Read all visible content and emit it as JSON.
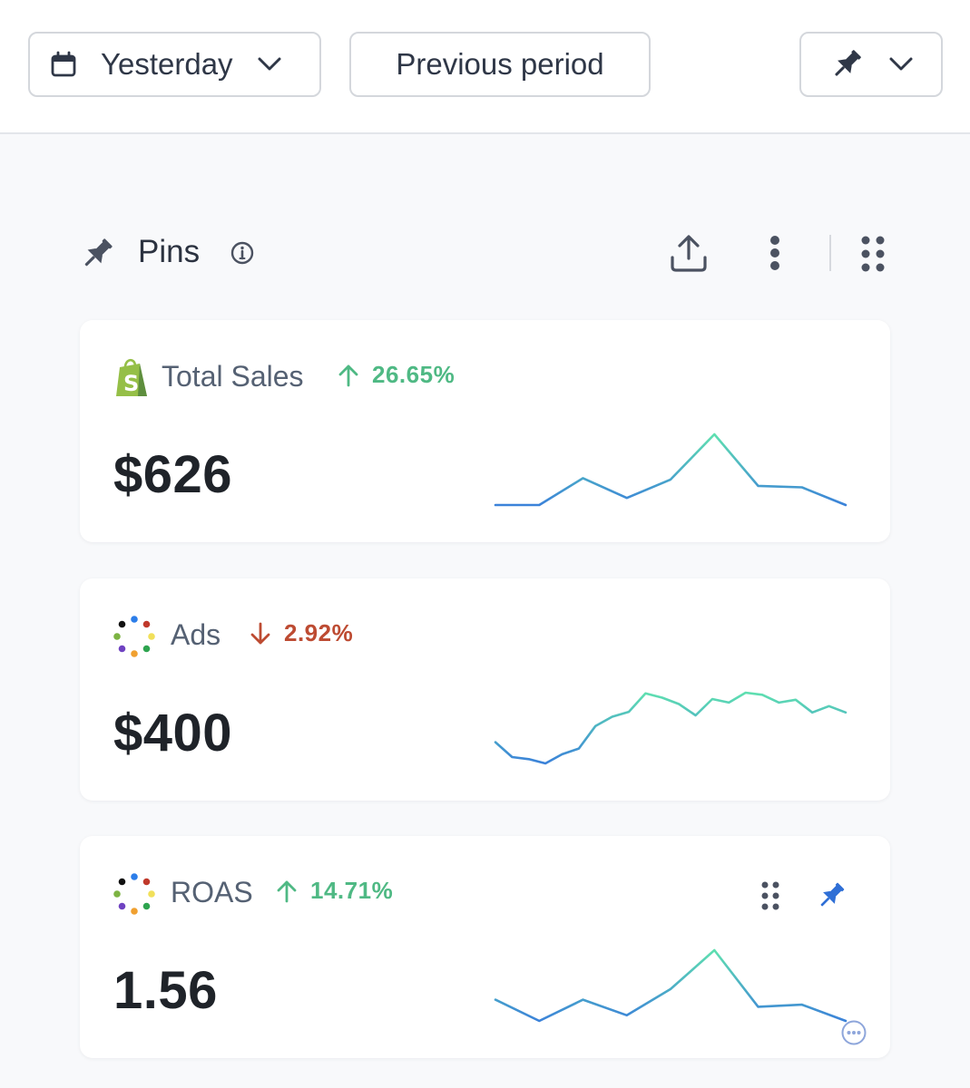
{
  "toolbar": {
    "date_range": {
      "label": "Yesterday",
      "icon": "calendar-icon"
    },
    "compare": {
      "label": "Previous period"
    },
    "pin_menu": {
      "icon": "pin-icon"
    }
  },
  "section": {
    "title": "Pins",
    "icons": [
      "pin-icon",
      "info-icon",
      "share-icon",
      "kebab-icon",
      "grid-icon"
    ]
  },
  "colors": {
    "positive": "#4fb984",
    "negative": "#bd4b32",
    "line_start": "#3b82d9",
    "line_end": "#5fe0b0",
    "pinned": "#2f6fd6"
  },
  "cards": [
    {
      "name": "Total Sales",
      "source_icon": "shopify-icon",
      "trend": {
        "direction": "up",
        "value": "26.65%"
      },
      "value": "$626",
      "sparkline": [
        0.0,
        0.0,
        0.38,
        0.1,
        0.36,
        1.0,
        0.27,
        0.25,
        0.0
      ]
    },
    {
      "name": "Ads",
      "source_icon": "dot-ring-icon",
      "trend": {
        "direction": "down",
        "value": "2.92%"
      },
      "value": "$400",
      "sparkline": [
        0.3,
        0.09,
        0.06,
        0.0,
        0.13,
        0.21,
        0.53,
        0.66,
        0.73,
        0.99,
        0.93,
        0.84,
        0.68,
        0.91,
        0.86,
        1.0,
        0.97,
        0.86,
        0.9,
        0.72,
        0.81,
        0.72
      ]
    },
    {
      "name": "ROAS",
      "source_icon": "dot-ring-icon",
      "trend": {
        "direction": "up",
        "value": "14.71%"
      },
      "value": "1.56",
      "sparkline": [
        0.3,
        0.0,
        0.3,
        0.08,
        0.45,
        1.0,
        0.2,
        0.23,
        0.0
      ],
      "pinned": true
    }
  ]
}
